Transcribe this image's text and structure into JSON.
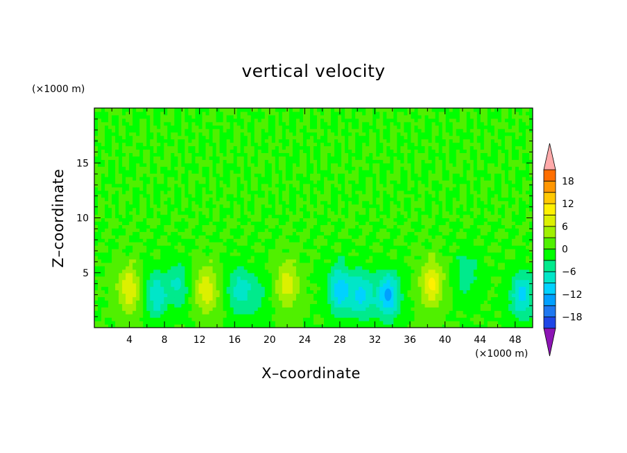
{
  "chart_data": {
    "type": "heatmap",
    "title": "vertical velocity",
    "xlabel": "X–coordinate",
    "ylabel": "Z–coordinate",
    "x_unit": "(×1000 m)",
    "y_unit": "(×1000 m)",
    "xlim": [
      0,
      50
    ],
    "ylim": [
      0,
      20
    ],
    "x_ticks": [
      "4",
      "8",
      "12",
      "16",
      "20",
      "24",
      "28",
      "32",
      "36",
      "40",
      "44",
      "48"
    ],
    "y_ticks": [
      "5",
      "10",
      "15"
    ],
    "colorbar": {
      "labels": [
        "18",
        "12",
        "6",
        "0",
        "−6",
        "−12",
        "−18"
      ],
      "range": [
        -21,
        21
      ],
      "step": 3,
      "extend": "both"
    },
    "cells": [
      {
        "x": 4.0,
        "z": 3.5,
        "w": 8.5
      },
      {
        "x": 7.0,
        "z": 3.0,
        "w": -8.0
      },
      {
        "x": 9.5,
        "z": 4.0,
        "w": -6.0
      },
      {
        "x": 12.8,
        "z": 3.5,
        "w": 8.0
      },
      {
        "x": 16.5,
        "z": 3.5,
        "w": -7.0
      },
      {
        "x": 18.5,
        "z": 3.0,
        "w": -4.0
      },
      {
        "x": 22.0,
        "z": 4.0,
        "w": 7.5
      },
      {
        "x": 28.0,
        "z": 3.5,
        "w": -11.0
      },
      {
        "x": 30.5,
        "z": 3.0,
        "w": -9.5
      },
      {
        "x": 33.5,
        "z": 3.0,
        "w": -12.0
      },
      {
        "x": 38.5,
        "z": 4.0,
        "w": 9.0
      },
      {
        "x": 42.5,
        "z": 5.0,
        "w": -5.0
      },
      {
        "x": 48.8,
        "z": 3.0,
        "w": -10.0
      }
    ]
  }
}
